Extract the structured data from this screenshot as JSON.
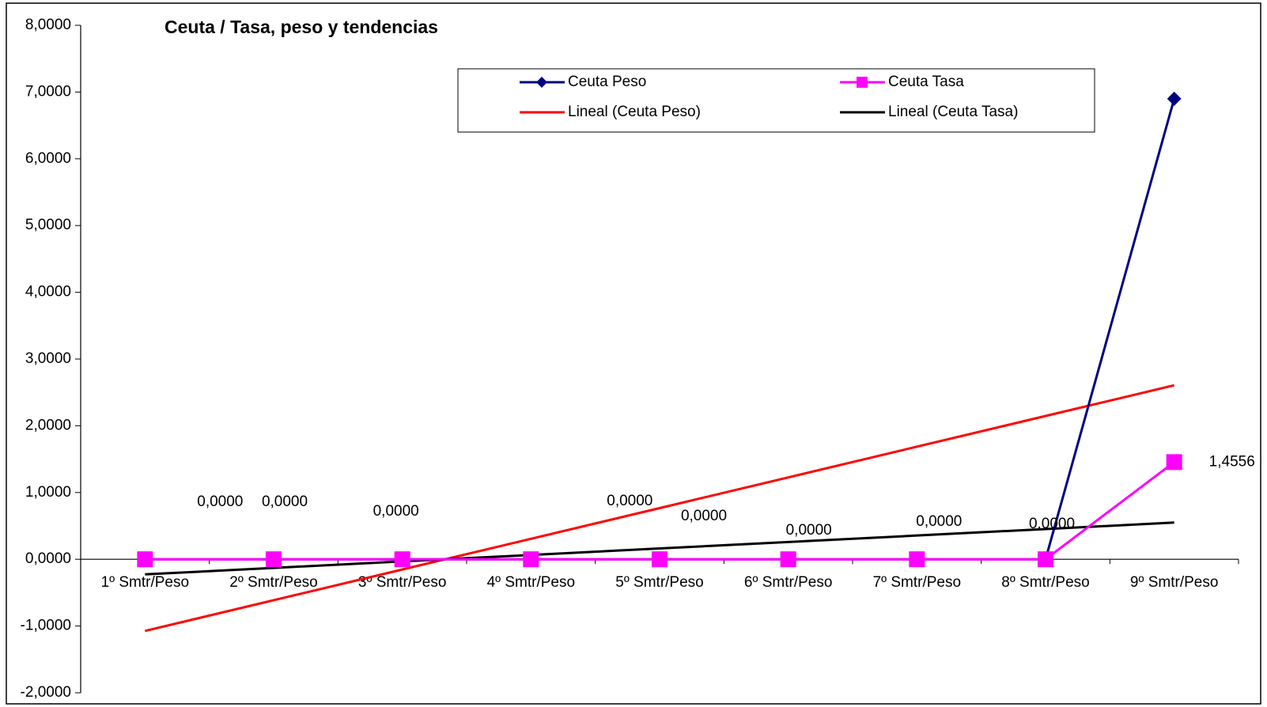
{
  "chart_data": {
    "type": "line",
    "title": "Ceuta  / Tasa, peso y tendencias",
    "categories": [
      "1º Smtr/Peso",
      "2º Smtr/Peso",
      "3º Smtr/Peso",
      "4º Smtr/Peso",
      "5º Smtr/Peso",
      "6º Smtr/Peso",
      "7º Smtr/Peso",
      "8º Smtr/Peso",
      "9º Smtr/Peso"
    ],
    "series": [
      {
        "name": "Ceuta Peso",
        "color": "#000080",
        "marker": "diamond",
        "values": [
          0,
          0,
          0,
          0,
          0,
          0,
          0,
          0,
          6.9
        ],
        "value_labels": [
          "0,0000",
          "0,0000",
          "0,0000",
          "0,0000",
          "0,0000",
          "0,0000",
          "0,0000",
          "0,0000",
          null
        ]
      },
      {
        "name": "Ceuta Tasa",
        "color": "#ff00ff",
        "marker": "square",
        "values": [
          0,
          0,
          0,
          0,
          0,
          0,
          0,
          0,
          1.4556
        ],
        "value_labels": [
          null,
          null,
          null,
          null,
          null,
          null,
          null,
          null,
          "1,4556"
        ]
      },
      {
        "name": "Lineal (Ceuta Peso)",
        "color": "#ff0000",
        "marker": "none",
        "values": [
          -1.0733,
          -0.6133,
          -0.1533,
          0.3067,
          0.7667,
          1.2267,
          1.6867,
          2.1467,
          2.6067
        ]
      },
      {
        "name": "Lineal (Ceuta Tasa)",
        "color": "#000000",
        "marker": "none",
        "values": [
          -0.2264,
          -0.1294,
          -0.0323,
          0.0647,
          0.1617,
          0.2588,
          0.3558,
          0.4528,
          0.5499
        ]
      }
    ],
    "ylim": [
      -2,
      8
    ],
    "yticks": [
      {
        "value": -2,
        "label": "-2,0000"
      },
      {
        "value": -1,
        "label": "-1,0000"
      },
      {
        "value": 0,
        "label": "0,0000"
      },
      {
        "value": 1,
        "label": "1,0000"
      },
      {
        "value": 2,
        "label": "2,0000"
      },
      {
        "value": 3,
        "label": "3,0000"
      },
      {
        "value": 4,
        "label": "4,0000"
      },
      {
        "value": 5,
        "label": "5,0000"
      },
      {
        "value": 6,
        "label": "6,0000"
      },
      {
        "value": 7,
        "label": "7,0000"
      },
      {
        "value": 8,
        "label": "8,0000"
      }
    ],
    "grid": false
  }
}
